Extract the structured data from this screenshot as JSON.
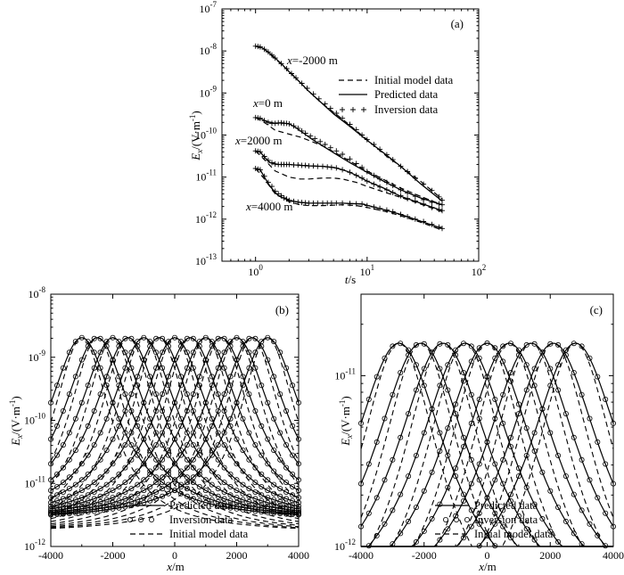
{
  "panels": [
    {
      "id": "a",
      "label": "(a)",
      "xlabel_main": "t",
      "xlabel_unit": "/s",
      "ylabel_main": "E",
      "ylabel_sub": "x",
      "ylabel_unit": "/(V·m",
      "ylabel_exp": "-1",
      "ylabel_close": ")",
      "xticks": [
        {
          "base": "10",
          "exp": "0"
        },
        {
          "base": "10",
          "exp": "1"
        },
        {
          "base": "10",
          "exp": "2"
        }
      ],
      "yticks": [
        {
          "base": "10",
          "exp": "-13"
        },
        {
          "base": "10",
          "exp": "-12"
        },
        {
          "base": "10",
          "exp": "-11"
        },
        {
          "base": "10",
          "exp": "-10"
        },
        {
          "base": "10",
          "exp": "-9"
        },
        {
          "base": "10",
          "exp": "-8"
        },
        {
          "base": "10",
          "exp": "-7"
        }
      ],
      "legend": [
        "Initial model data",
        "Predicted data",
        "Inversion data"
      ],
      "annotations": [
        {
          "italic": "x",
          "text": "=-2000 m"
        },
        {
          "italic": "x",
          "text": "=0 m"
        },
        {
          "italic": "x",
          "text": "=2000 m"
        },
        {
          "italic": "x",
          "text": "=4000 m"
        }
      ]
    },
    {
      "id": "b",
      "label": "(b)",
      "xlabel_main": "x",
      "xlabel_unit": "/m",
      "ylabel_main": "E",
      "ylabel_sub": "x",
      "ylabel_unit": "/(V·m",
      "ylabel_exp": "-1",
      "ylabel_close": ")",
      "xticks": [
        "-4000",
        "-2000",
        "0",
        "2000",
        "4000"
      ],
      "yticks": [
        {
          "base": "10",
          "exp": "-12"
        },
        {
          "base": "10",
          "exp": "-11"
        },
        {
          "base": "10",
          "exp": "-10"
        },
        {
          "base": "10",
          "exp": "-9"
        },
        {
          "base": "10",
          "exp": "-8"
        }
      ],
      "legend": [
        "Predicted data",
        "Inversion data",
        "Initial model data"
      ]
    },
    {
      "id": "c",
      "label": "(c)",
      "xlabel_main": "x",
      "xlabel_unit": "/m",
      "ylabel_main": "E",
      "ylabel_sub": "x",
      "ylabel_unit": "/(V·m",
      "ylabel_exp": "-1",
      "ylabel_close": ")",
      "xticks": [
        "-4000",
        "-2000",
        "0",
        "2000",
        "4000"
      ],
      "yticks": [
        {
          "base": "10",
          "exp": "-12"
        },
        {
          "base": "10",
          "exp": "-11"
        }
      ],
      "legend": [
        "Predicted data",
        "Inversion data",
        "Initial model data"
      ]
    }
  ],
  "chart_data": [
    {
      "type": "line",
      "panel": "a",
      "xscale": "log",
      "yscale": "log",
      "xlim": [
        0.5,
        100
      ],
      "ylim": [
        1e-13,
        1e-07
      ],
      "grid": false,
      "legend_position": "top-right",
      "series": [
        {
          "curve": "x=-2000 m",
          "kind": "predicted",
          "x": [
            1,
            1.1,
            1.2,
            1.4,
            1.7,
            2,
            2.5,
            3,
            4,
            5,
            7,
            10,
            14,
            20,
            30,
            47
          ],
          "y": [
            1.3e-08,
            1.25e-08,
            1.1e-08,
            8e-09,
            5e-09,
            3.2e-09,
            1.8e-09,
            1.1e-09,
            5.5e-10,
            3.2e-10,
            1.6e-10,
            7.5e-11,
            3.8e-11,
            1.8e-11,
            7e-12,
            2.7e-12
          ]
        },
        {
          "curve": "x=0 m",
          "kind": "predicted",
          "x": [
            1,
            1.1,
            1.25,
            1.5,
            1.7,
            2,
            2.3,
            2.7,
            3.2,
            4,
            5,
            7,
            10,
            14,
            20,
            30,
            47
          ],
          "y": [
            2.6e-10,
            2.5e-10,
            2.1e-10,
            1.9e-10,
            1.95e-10,
            1.85e-10,
            1.5e-10,
            1.1e-10,
            8e-11,
            5.5e-11,
            3.8e-11,
            2.2e-11,
            1.3e-11,
            8e-12,
            5e-12,
            3.2e-12,
            2.2e-12
          ]
        },
        {
          "curve": "x=2000 m",
          "kind": "predicted",
          "x": [
            1,
            1.1,
            1.2,
            1.35,
            1.6,
            2,
            2.5,
            3,
            4,
            5,
            6,
            7,
            8,
            10,
            14,
            20,
            30,
            47
          ],
          "y": [
            4.2e-11,
            4e-11,
            3e-11,
            2.2e-11,
            2e-11,
            2e-11,
            1.9e-11,
            1.85e-11,
            1.8e-11,
            1.7e-11,
            1.5e-11,
            1.3e-11,
            1.1e-11,
            8e-12,
            5.5e-12,
            3.5e-12,
            2.4e-12,
            1.6e-12
          ]
        },
        {
          "curve": "x=4000 m",
          "kind": "predicted",
          "x": [
            1,
            1.1,
            1.2,
            1.35,
            1.6,
            2,
            2.5,
            3,
            4,
            5,
            6,
            7,
            9,
            11,
            14,
            20,
            30,
            47
          ],
          "y": [
            1.6e-11,
            1.5e-11,
            1e-11,
            6e-12,
            3.6e-12,
            2.8e-12,
            2.5e-12,
            2.4e-12,
            2.4e-12,
            2.4e-12,
            2.4e-12,
            2.35e-12,
            2.3e-12,
            2e-12,
            1.7e-12,
            1.3e-12,
            9e-13,
            6e-13
          ]
        },
        {
          "curve": "x=-2000 m",
          "kind": "initial",
          "x": [
            1,
            1.2,
            1.5,
            2,
            3,
            4,
            6,
            10,
            15,
            20,
            30,
            47
          ],
          "y": [
            1.3e-08,
            1.1e-08,
            6.5e-09,
            3.3e-09,
            1.1e-09,
            5.5e-10,
            2.4e-10,
            7.8e-11,
            3.1e-11,
            1.8e-11,
            8e-12,
            3e-12
          ]
        },
        {
          "curve": "x=0 m",
          "kind": "initial",
          "x": [
            1,
            1.2,
            1.5,
            2,
            2.5,
            3,
            4,
            5,
            7,
            10,
            15,
            20,
            30,
            47
          ],
          "y": [
            2.6e-10,
            2e-10,
            1.3e-10,
            1.05e-10,
            9e-11,
            7.5e-11,
            5.5e-11,
            4e-11,
            2.4e-11,
            1.4e-11,
            8e-12,
            5.5e-12,
            3.5e-12,
            2.2e-12
          ]
        },
        {
          "curve": "x=2000 m",
          "kind": "initial",
          "x": [
            1,
            1.2,
            1.5,
            2,
            2.5,
            3,
            4,
            5,
            6,
            8,
            10,
            15,
            20,
            30,
            47
          ],
          "y": [
            4.2e-11,
            2.6e-11,
            1.4e-11,
            1e-11,
            9e-12,
            9e-12,
            9.5e-12,
            9.5e-12,
            9e-12,
            7.5e-12,
            6e-12,
            4.2e-12,
            3.3e-12,
            2.3e-12,
            1.5e-12
          ]
        },
        {
          "curve": "x=4000 m",
          "kind": "initial",
          "x": [
            1,
            1.2,
            1.5,
            2,
            2.5,
            3,
            4,
            5,
            6,
            8,
            10,
            15,
            20,
            30,
            47
          ],
          "y": [
            1.6e-11,
            9e-12,
            4e-12,
            2.6e-12,
            2.2e-12,
            2.1e-12,
            2.1e-12,
            2.15e-12,
            2.2e-12,
            2.1e-12,
            1.9e-12,
            1.5e-12,
            1.2e-12,
            8.5e-13,
            5.5e-13
          ]
        },
        {
          "curve": "x=-2000 m",
          "kind": "inversion",
          "x": [
            1,
            1.05,
            1.1,
            1.2,
            1.3,
            1.4,
            1.5,
            1.7,
            1.9,
            2.1,
            2.3,
            2.6,
            2.9,
            3.3,
            3.7,
            4.2,
            4.7,
            5.3,
            6,
            7,
            8,
            9,
            10,
            11.5,
            13,
            15,
            17,
            20,
            23,
            27,
            32,
            38,
            44,
            47
          ],
          "y": [
            1.3e-08,
            1.28e-08,
            1.25e-08,
            1.1e-08,
            9.5e-09,
            8e-09,
            6.8e-09,
            5e-09,
            3.8e-09,
            2.9e-09,
            2.3e-09,
            1.7e-09,
            1.3e-09,
            9.5e-10,
            7.3e-10,
            5.5e-10,
            4.3e-10,
            3.3e-10,
            2.5e-10,
            1.8e-10,
            1.35e-10,
            1e-10,
            7.8e-11,
            6e-11,
            4.6e-11,
            3.4e-11,
            2.6e-11,
            1.8e-11,
            1.35e-11,
            9.5e-12,
            6.8e-12,
            4.8e-12,
            3.4e-12,
            2.8e-12
          ]
        },
        {
          "curve": "x=0 m",
          "kind": "inversion",
          "x": [
            1,
            1.05,
            1.1,
            1.2,
            1.3,
            1.4,
            1.5,
            1.6,
            1.7,
            1.8,
            1.9,
            2,
            2.2,
            2.4,
            2.6,
            2.8,
            3.1,
            3.4,
            3.8,
            4.2,
            4.7,
            5.3,
            6,
            7,
            8,
            9,
            10,
            11.5,
            13,
            15,
            17,
            20,
            23,
            27,
            32,
            38,
            44,
            47
          ],
          "y": [
            2.6e-10,
            2.55e-10,
            2.5e-10,
            2.2e-10,
            2e-10,
            1.9e-10,
            1.9e-10,
            1.95e-10,
            1.95e-10,
            1.9e-10,
            1.9e-10,
            1.85e-10,
            1.65e-10,
            1.45e-10,
            1.25e-10,
            1.1e-10,
            9.5e-11,
            8.2e-11,
            7e-11,
            6e-11,
            5e-11,
            4.2e-11,
            3.5e-11,
            2.7e-11,
            2.1e-11,
            1.7e-11,
            1.35e-11,
            1.1e-11,
            9e-12,
            7.5e-12,
            6.3e-12,
            5e-12,
            4.2e-12,
            3.5e-12,
            2.9e-12,
            2.5e-12,
            2.3e-12,
            2.2e-12
          ]
        },
        {
          "curve": "x=2000 m",
          "kind": "inversion",
          "x": [
            1,
            1.05,
            1.1,
            1.2,
            1.3,
            1.4,
            1.5,
            1.6,
            1.7,
            1.8,
            1.9,
            2,
            2.2,
            2.4,
            2.6,
            2.8,
            3,
            3.3,
            3.6,
            4,
            4.4,
            4.8,
            5.3,
            6,
            7,
            8,
            9,
            10,
            11.5,
            13,
            15,
            17,
            20,
            23,
            27,
            32,
            38,
            44,
            47
          ],
          "y": [
            4.2e-11,
            4.1e-11,
            4e-11,
            3.1e-11,
            2.5e-11,
            2.2e-11,
            2.05e-11,
            2e-11,
            2e-11,
            2e-11,
            2e-11,
            2e-11,
            1.95e-11,
            1.95e-11,
            1.9e-11,
            1.9e-11,
            1.85e-11,
            1.85e-11,
            1.8e-11,
            1.8e-11,
            1.75e-11,
            1.7e-11,
            1.65e-11,
            1.5e-11,
            1.3e-11,
            1.1e-11,
            9.5e-12,
            8e-12,
            6.8e-12,
            5.8e-12,
            5e-12,
            4.3e-12,
            3.6e-12,
            3.1e-12,
            2.7e-12,
            2.3e-12,
            1.9e-12,
            1.7e-12,
            1.6e-12
          ]
        },
        {
          "curve": "x=4000 m",
          "kind": "inversion",
          "x": [
            1,
            1.05,
            1.1,
            1.2,
            1.3,
            1.4,
            1.5,
            1.6,
            1.7,
            1.8,
            1.9,
            2,
            2.2,
            2.4,
            2.6,
            2.8,
            3,
            3.3,
            3.6,
            4,
            4.4,
            4.8,
            5.3,
            6,
            7,
            8,
            9,
            10,
            11.5,
            13,
            15,
            17,
            20,
            23,
            27,
            32,
            38,
            44,
            47
          ],
          "y": [
            1.6e-11,
            1.55e-11,
            1.5e-11,
            1.05e-11,
            7.5e-12,
            6e-12,
            4.6e-12,
            4e-12,
            3.6e-12,
            3.2e-12,
            3e-12,
            2.8e-12,
            2.65e-12,
            2.55e-12,
            2.5e-12,
            2.45e-12,
            2.4e-12,
            2.4e-12,
            2.4e-12,
            2.4e-12,
            2.4e-12,
            2.4e-12,
            2.4e-12,
            2.4e-12,
            2.35e-12,
            2.32e-12,
            2.3e-12,
            2.1e-12,
            1.95e-12,
            1.8e-12,
            1.65e-12,
            1.5e-12,
            1.3e-12,
            1.15e-12,
            1e-12,
            8.8e-13,
            7.5e-13,
            6.5e-13,
            6e-13
          ]
        }
      ]
    },
    {
      "type": "line",
      "panel": "b",
      "xscale": "linear",
      "yscale": "log",
      "xlim": [
        -4000,
        4000
      ],
      "ylim": [
        1e-12,
        1e-08
      ],
      "grid": false,
      "legend_position": "bottom-center",
      "curve_model": {
        "family": "bell",
        "peak_positions": [
          -3000,
          -2500,
          -2000,
          -1500,
          -1000,
          -500,
          0,
          500,
          1000,
          1500,
          2000,
          2500,
          3000
        ],
        "peak_value": 2.05e-09,
        "far_floor": 2.5e-12,
        "half_width": 1350,
        "initial_half_width": 1150,
        "initial_floor": 1.6e-12,
        "marker_spacing": 200
      }
    },
    {
      "type": "line",
      "panel": "c",
      "xscale": "linear",
      "yscale": "log",
      "xlim": [
        -4000,
        4000
      ],
      "ylim": [
        1e-12,
        3e-11
      ],
      "grid": false,
      "legend_position": "bottom-center",
      "curve_model": {
        "family": "bell",
        "peak_positions": [
          -2800,
          -2100,
          -1400,
          -700,
          0,
          700,
          1400,
          2100,
          2800
        ],
        "peak_value": 1.55e-11,
        "far_floor": 3.5e-13,
        "half_width": 1900,
        "initial_half_width": 1650,
        "initial_floor": 2.5e-13,
        "marker_spacing": 250
      }
    }
  ]
}
